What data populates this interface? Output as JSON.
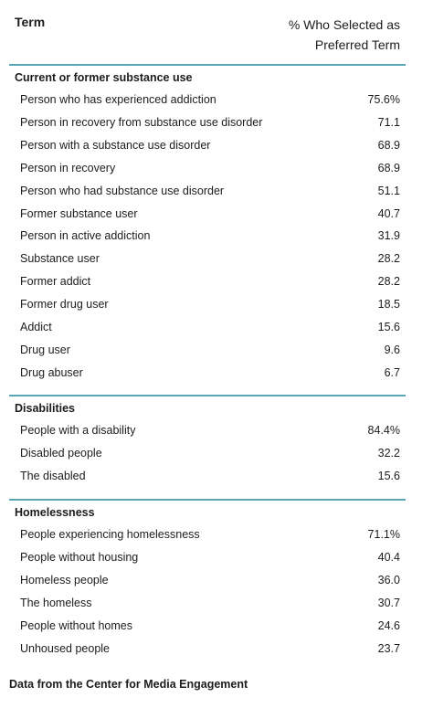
{
  "header": {
    "term": "Term",
    "pct_line1": "% Who Selected as",
    "pct_line2": "Preferred Term"
  },
  "sections": [
    {
      "title": "Current or former substance use",
      "rows": [
        {
          "label": "Person who has experienced addiction",
          "value": "75.6%"
        },
        {
          "label": "Person in recovery from substance use disorder",
          "value": "71.1"
        },
        {
          "label": "Person with a substance use disorder",
          "value": "68.9"
        },
        {
          "label": "Person in recovery",
          "value": "68.9"
        },
        {
          "label": "Person who had substance use disorder",
          "value": "51.1"
        },
        {
          "label": "Former substance user",
          "value": "40.7"
        },
        {
          "label": "Person in active addiction",
          "value": "31.9"
        },
        {
          "label": "Substance user",
          "value": "28.2"
        },
        {
          "label": "Former addict",
          "value": "28.2"
        },
        {
          "label": "Former drug user",
          "value": "18.5"
        },
        {
          "label": "Addict",
          "value": "15.6"
        },
        {
          "label": "Drug user",
          "value": "9.6"
        },
        {
          "label": "Drug abuser",
          "value": "6.7"
        }
      ]
    },
    {
      "title": "Disabilities",
      "rows": [
        {
          "label": "People with a disability",
          "value": "84.4%"
        },
        {
          "label": "Disabled people",
          "value": "32.2"
        },
        {
          "label": "The disabled",
          "value": "15.6"
        }
      ]
    },
    {
      "title": "Homelessness",
      "rows": [
        {
          "label": "People experiencing homelessness",
          "value": "71.1%"
        },
        {
          "label": "People without housing",
          "value": "40.4"
        },
        {
          "label": "Homeless people",
          "value": "36.0"
        },
        {
          "label": "The homeless",
          "value": "30.7"
        },
        {
          "label": "People without homes",
          "value": "24.6"
        },
        {
          "label": "Unhoused people",
          "value": "23.7"
        }
      ]
    }
  ],
  "footer": "Data from the Center for Media Engagement",
  "colors": {
    "rule": "#5aa6b5",
    "text": "#1c1c1c"
  }
}
